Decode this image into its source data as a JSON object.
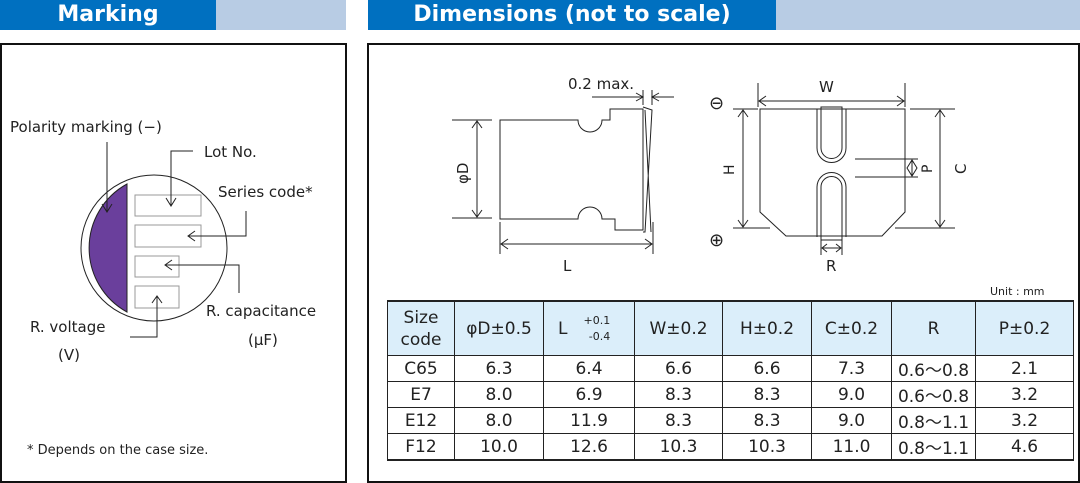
{
  "marking": {
    "title": "Marking",
    "polarity": "Polarity marking (−)",
    "lot": "Lot No.",
    "series": "Series code*",
    "capacitance": "R. capacitance",
    "cap_unit": "(µF)",
    "voltage": "R. voltage",
    "volt_unit": "(V)",
    "note": "* Depends on the case size.",
    "polarity_color": "#6a3f9c"
  },
  "dimensions": {
    "title": "Dimensions (not to scale)",
    "max": "0.2 max.",
    "D": "φD",
    "L": "L",
    "W": "W",
    "H": "H",
    "P": "P",
    "C": "C",
    "R": "R",
    "minus": "⊖",
    "plus": "⊕",
    "unit": "Unit : mm",
    "table": {
      "headers": [
        "Size code",
        "φD±0.5",
        "L",
        "W±0.2",
        "H±0.2",
        "C±0.2",
        "R",
        "P±0.2"
      ],
      "L_tol_plus": "+0.1",
      "L_tol_minus": "-0.4",
      "rows": [
        [
          "C65",
          "6.3",
          "6.4",
          "6.6",
          "6.6",
          "7.3",
          "0.6～0.8",
          "2.1"
        ],
        [
          "E7",
          "8.0",
          "6.9",
          "8.3",
          "8.3",
          "9.0",
          "0.6～0.8",
          "3.2"
        ],
        [
          "E12",
          "8.0",
          "11.9",
          "8.3",
          "8.3",
          "9.0",
          "0.8～1.1",
          "3.2"
        ],
        [
          "F12",
          "10.0",
          "12.6",
          "10.3",
          "10.3",
          "11.0",
          "0.8～1.1",
          "4.6"
        ]
      ]
    }
  }
}
